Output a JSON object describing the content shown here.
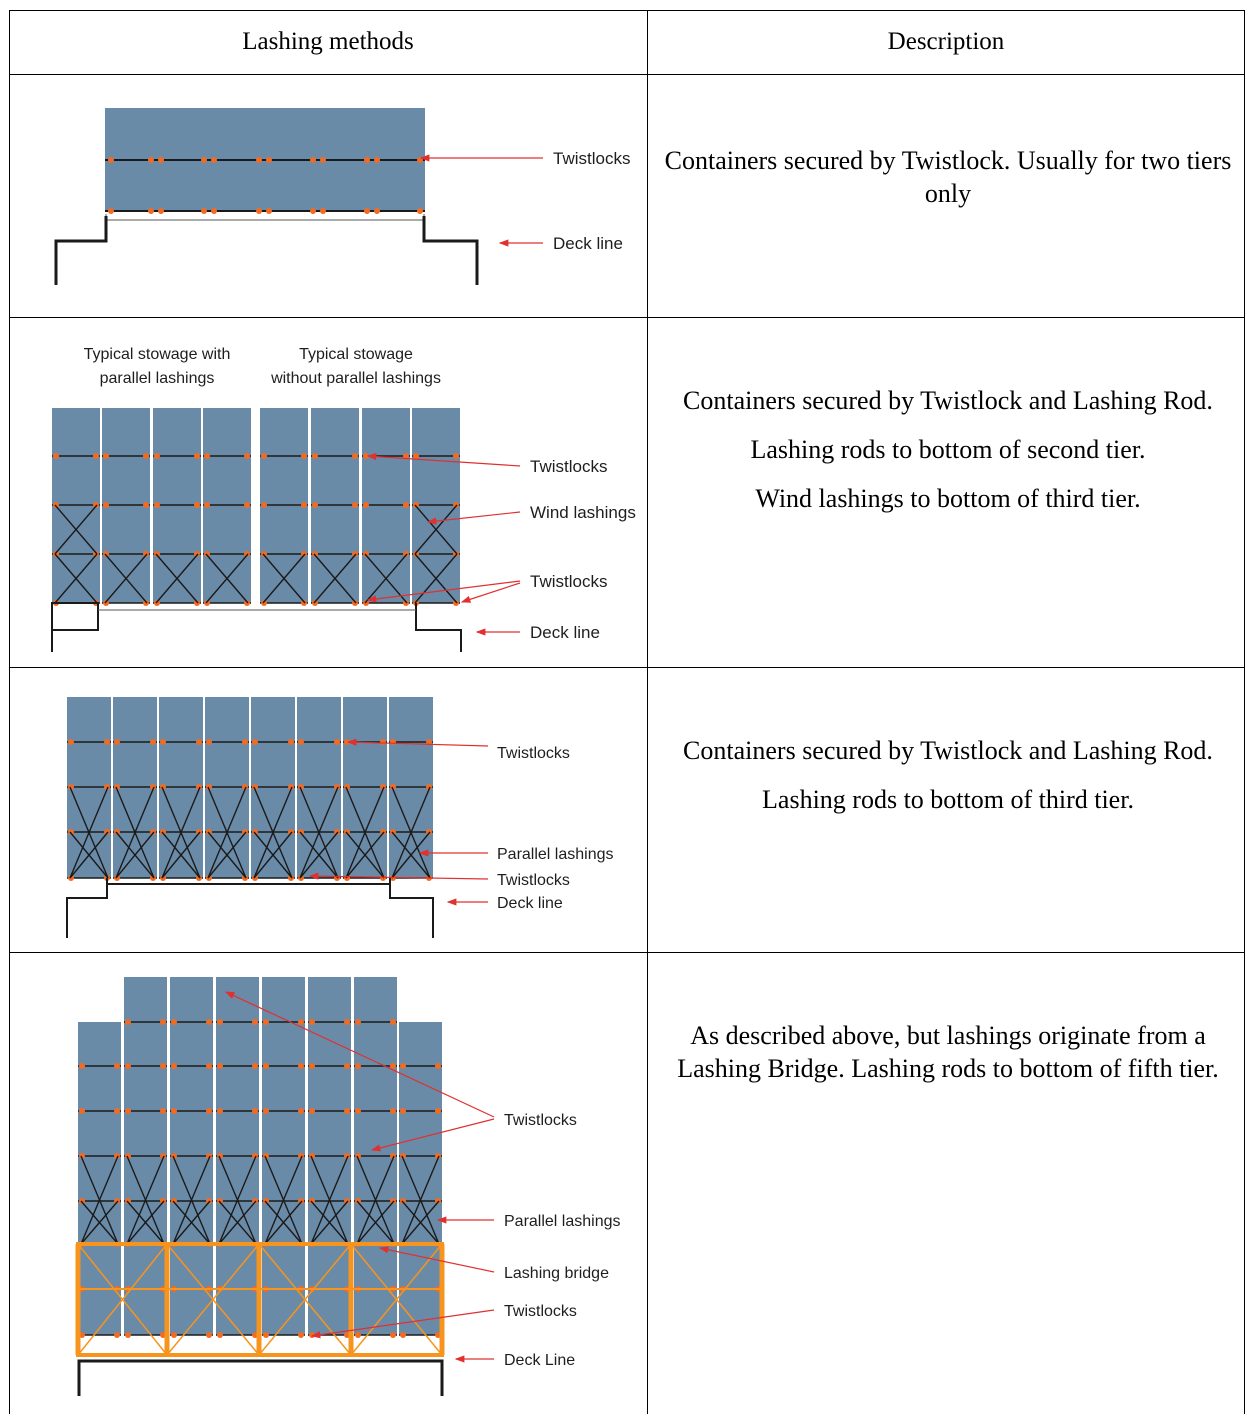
{
  "table": {
    "headers": {
      "method": "Lashing methods",
      "description": "Description"
    },
    "rows": [
      {
        "labels": {
          "twistlocks": "Twistlocks",
          "deck_line": "Deck line"
        },
        "description": [
          "Containers  secured by Twistlock. Usually for two tiers only"
        ]
      },
      {
        "captions": {
          "left": "Typical stowage with parallel lashings",
          "right": "Typical stowage without parallel lashings"
        },
        "labels": {
          "twistlocks_top": "Twistlocks",
          "wind_lashings": "Wind lashings",
          "twistlocks_bottom": "Twistlocks",
          "deck_line": "Deck line"
        },
        "description": [
          "Containers secured by Twistlock and Lashing Rod.",
          "Lashing rods to bottom of second tier.",
          "Wind lashings to bottom of third tier."
        ]
      },
      {
        "labels": {
          "twistlocks_top": "Twistlocks",
          "parallel_lashings": "Parallel lashings",
          "twistlocks_bottom": "Twistlocks",
          "deck_line": "Deck line"
        },
        "description": [
          "Containers secured by Twistlock and Lashing Rod.",
          "Lashing rods to bottom of third tier."
        ]
      },
      {
        "labels": {
          "twistlocks": "Twistlocks",
          "parallel_lashings": "Parallel lashings",
          "lashing_bridge": "Lashing bridge",
          "twistlocks_bottom": "Twistlocks",
          "deck_line": "Deck Line"
        },
        "description": [
          "As described above, but lashings originate from a Lashing Bridge. Lashing rods to bottom of fifth tier."
        ]
      }
    ]
  },
  "colors": {
    "container": "#6a8ba8",
    "twistlock": "#f26b21",
    "arrow": "#e03030",
    "bridge": "#f7941d",
    "line": "#1a1a1a"
  }
}
